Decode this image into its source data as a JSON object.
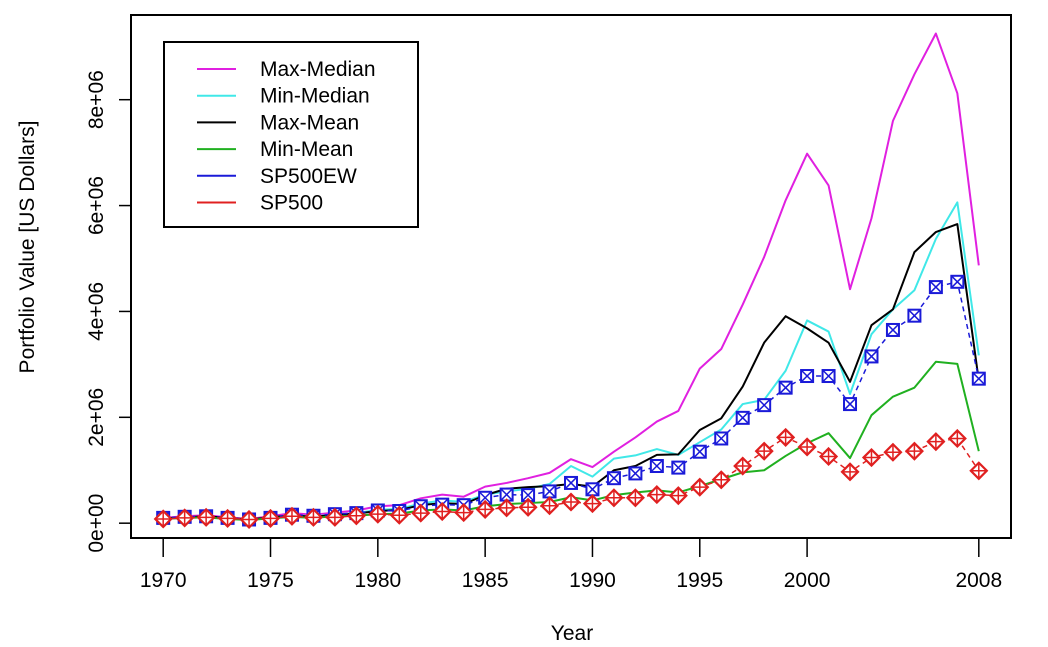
{
  "chart_data": {
    "type": "line",
    "xlabel": "Year",
    "ylabel": "Portfolio Value [US Dollars]",
    "xlim": [
      1968.5,
      2009.5
    ],
    "ylim": [
      -280000,
      9600000
    ],
    "x_ticks": [
      1970,
      1975,
      1980,
      1985,
      1990,
      1995,
      2000,
      2008
    ],
    "x_tick_labels": [
      "1970",
      "1975",
      "1980",
      "1985",
      "1990",
      "1995",
      "2000",
      "2008"
    ],
    "y_ticks": [
      0,
      2000000,
      4000000,
      6000000,
      8000000
    ],
    "y_tick_labels": [
      "0e+00",
      "2e+06",
      "4e+06",
      "6e+06",
      "8e+06"
    ],
    "legend_position": "top-left",
    "x": [
      1970,
      1971,
      1972,
      1973,
      1974,
      1975,
      1976,
      1977,
      1978,
      1979,
      1980,
      1981,
      1982,
      1983,
      1984,
      1985,
      1986,
      1987,
      1988,
      1989,
      1990,
      1991,
      1992,
      1993,
      1994,
      1995,
      1996,
      1997,
      1998,
      1999,
      2000,
      2001,
      2002,
      2003,
      2004,
      2005,
      2006,
      2007,
      2008
    ],
    "series": [
      {
        "name": "Max-Median",
        "color": "#e020e0",
        "marker": "none",
        "values": [
          100000,
          130000,
          150000,
          110000,
          80000,
          130000,
          190000,
          160000,
          200000,
          240000,
          320000,
          340000,
          470000,
          540000,
          500000,
          690000,
          760000,
          850000,
          950000,
          1210000,
          1060000,
          1350000,
          1620000,
          1920000,
          2120000,
          2920000,
          3290000,
          4130000,
          5030000,
          6100000,
          6980000,
          6380000,
          4420000,
          5760000,
          7600000,
          8480000,
          9250000,
          8120000,
          4870000
        ]
      },
      {
        "name": "Min-Median",
        "color": "#40e8e8",
        "marker": "none",
        "values": [
          90000,
          110000,
          120000,
          90000,
          70000,
          110000,
          150000,
          130000,
          160000,
          190000,
          250000,
          270000,
          370000,
          430000,
          400000,
          540000,
          600000,
          650000,
          740000,
          1080000,
          880000,
          1220000,
          1280000,
          1400000,
          1290000,
          1530000,
          1770000,
          2250000,
          2330000,
          2880000,
          3830000,
          3620000,
          2440000,
          3570000,
          4040000,
          4400000,
          5370000,
          6060000,
          3170000
        ]
      },
      {
        "name": "Max-Mean",
        "color": "#000000",
        "marker": "none",
        "values": [
          90000,
          110000,
          130000,
          100000,
          70000,
          110000,
          150000,
          120000,
          160000,
          180000,
          230000,
          250000,
          340000,
          380000,
          360000,
          530000,
          650000,
          680000,
          700000,
          740000,
          690000,
          1000000,
          1080000,
          1290000,
          1300000,
          1760000,
          1980000,
          2580000,
          3410000,
          3910000,
          3680000,
          3410000,
          2670000,
          3740000,
          4040000,
          5120000,
          5500000,
          5650000,
          2690000
        ]
      },
      {
        "name": "Min-Mean",
        "color": "#20b020",
        "marker": "none",
        "values": [
          80000,
          100000,
          110000,
          80000,
          60000,
          90000,
          120000,
          100000,
          130000,
          140000,
          170000,
          180000,
          240000,
          260000,
          240000,
          320000,
          360000,
          380000,
          400000,
          490000,
          430000,
          530000,
          580000,
          620000,
          580000,
          700000,
          830000,
          960000,
          1000000,
          1270000,
          1510000,
          1700000,
          1230000,
          2040000,
          2390000,
          2560000,
          3050000,
          3010000,
          1360000
        ]
      },
      {
        "name": "SP500EW",
        "color": "#1a1ad8",
        "marker": "boxed-x",
        "values": [
          100000,
          120000,
          130000,
          100000,
          70000,
          100000,
          160000,
          140000,
          170000,
          190000,
          240000,
          230000,
          320000,
          350000,
          340000,
          480000,
          540000,
          530000,
          600000,
          760000,
          640000,
          850000,
          940000,
          1080000,
          1050000,
          1350000,
          1600000,
          1990000,
          2230000,
          2560000,
          2780000,
          2780000,
          2250000,
          3150000,
          3650000,
          3920000,
          4460000,
          4560000,
          2730000
        ]
      },
      {
        "name": "SP500",
        "color": "#e02020",
        "marker": "diamond-plus",
        "values": [
          80000,
          100000,
          110000,
          90000,
          70000,
          90000,
          130000,
          110000,
          110000,
          140000,
          170000,
          150000,
          190000,
          220000,
          200000,
          260000,
          290000,
          300000,
          330000,
          400000,
          370000,
          480000,
          480000,
          540000,
          520000,
          680000,
          820000,
          1080000,
          1360000,
          1620000,
          1440000,
          1260000,
          970000,
          1240000,
          1340000,
          1360000,
          1540000,
          1600000,
          990000
        ]
      }
    ]
  }
}
